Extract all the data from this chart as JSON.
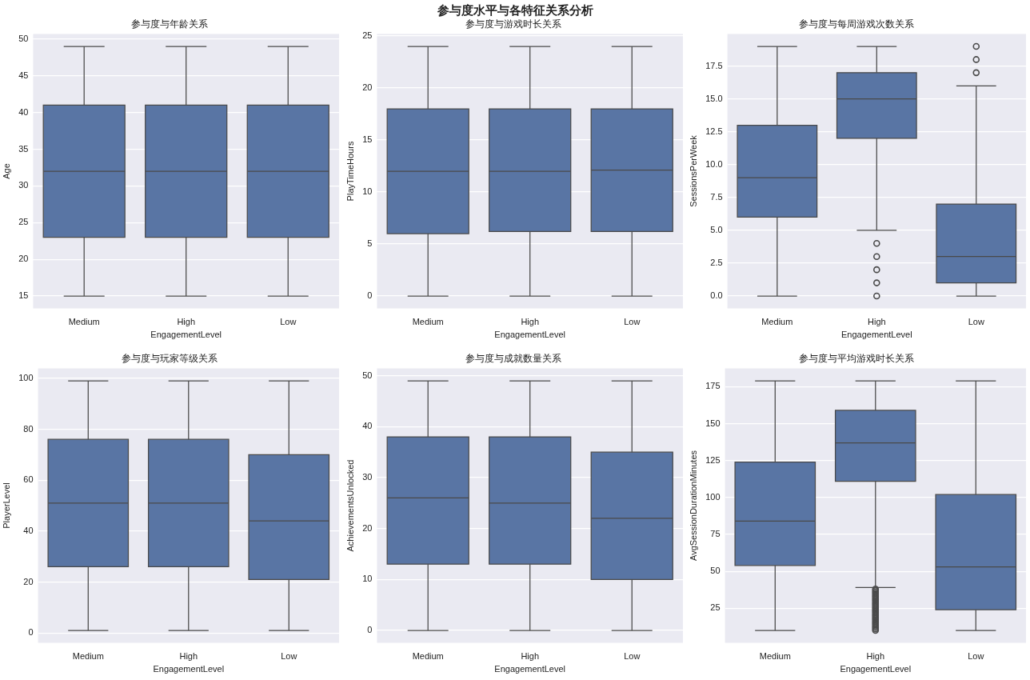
{
  "chart_data": [
    {
      "type": "other",
      "title": "参与度水平与各特征关系分析"
    },
    {
      "type": "box",
      "title": "参与度与年龄关系",
      "xlabel": "EngagementLevel",
      "ylabel": "Age",
      "categories": [
        "Medium",
        "High",
        "Low"
      ],
      "color": "#5975a4",
      "ylim": [
        13.3,
        50.7
      ],
      "yticks": [
        15,
        20,
        25,
        30,
        35,
        40,
        45,
        50
      ],
      "grid": "y",
      "boxes": [
        {
          "low": 15,
          "q1": 23,
          "median": 32,
          "q3": 41,
          "high": 49
        },
        {
          "low": 15,
          "q1": 23,
          "median": 32,
          "q3": 41,
          "high": 49
        },
        {
          "low": 15,
          "q1": 23,
          "median": 32,
          "q3": 41,
          "high": 49
        }
      ]
    },
    {
      "type": "box",
      "title": "参与度与游戏时长关系",
      "xlabel": "EngagementLevel",
      "ylabel": "PlayTimeHours",
      "categories": [
        "Medium",
        "High",
        "Low"
      ],
      "color": "#5975a4",
      "ylim": [
        -1.2,
        25.2
      ],
      "yticks": [
        0,
        5,
        10,
        15,
        20,
        25
      ],
      "grid": "y",
      "boxes": [
        {
          "low": 0,
          "q1": 6,
          "median": 12,
          "q3": 18,
          "high": 24
        },
        {
          "low": 0,
          "q1": 6.2,
          "median": 12,
          "q3": 18,
          "high": 24
        },
        {
          "low": 0,
          "q1": 6.2,
          "median": 12.1,
          "q3": 18,
          "high": 24
        }
      ]
    },
    {
      "type": "box",
      "title": "参与度与每周游戏次数关系",
      "xlabel": "EngagementLevel",
      "ylabel": "SessionsPerWeek",
      "categories": [
        "Medium",
        "High",
        "Low"
      ],
      "color": "#5975a4",
      "ylim": [
        -0.95,
        19.95
      ],
      "yticks": [
        {
          "value": 0,
          "label": "0.0"
        },
        {
          "value": 2.5,
          "label": "2.5"
        },
        {
          "value": 5,
          "label": "5.0"
        },
        {
          "value": 7.5,
          "label": "7.5"
        },
        {
          "value": 10,
          "label": "10.0"
        },
        {
          "value": 12.5,
          "label": "12.5"
        },
        {
          "value": 15,
          "label": "15.0"
        },
        {
          "value": 17.5,
          "label": "17.5"
        }
      ],
      "grid": "y",
      "boxes": [
        {
          "low": 0,
          "q1": 6,
          "median": 9,
          "q3": 13,
          "high": 19
        },
        {
          "low": 5,
          "q1": 12,
          "median": 15,
          "q3": 17,
          "high": 19,
          "outliers": [
            0,
            1,
            2,
            3,
            4
          ]
        },
        {
          "low": 0,
          "q1": 1,
          "median": 3,
          "q3": 7,
          "high": 16,
          "outliers": [
            17,
            18,
            19
          ]
        }
      ]
    },
    {
      "type": "box",
      "title": "参与度与玩家等级关系",
      "xlabel": "EngagementLevel",
      "ylabel": "PlayerLevel",
      "categories": [
        "Medium",
        "High",
        "Low"
      ],
      "color": "#5975a4",
      "ylim": [
        -3.9,
        103.9
      ],
      "yticks": [
        0,
        20,
        40,
        60,
        80,
        100
      ],
      "grid": "y",
      "boxes": [
        {
          "low": 1,
          "q1": 26,
          "median": 51,
          "q3": 76,
          "high": 99
        },
        {
          "low": 1,
          "q1": 26,
          "median": 51,
          "q3": 76,
          "high": 99
        },
        {
          "low": 1,
          "q1": 21,
          "median": 44,
          "q3": 70,
          "high": 99
        }
      ]
    },
    {
      "type": "box",
      "title": "参与度与成就数量关系",
      "xlabel": "EngagementLevel",
      "ylabel": "AchievementsUnlocked",
      "categories": [
        "Medium",
        "High",
        "Low"
      ],
      "color": "#5975a4",
      "ylim": [
        -2.45,
        51.45
      ],
      "yticks": [
        0,
        10,
        20,
        30,
        40,
        50
      ],
      "grid": "y",
      "boxes": [
        {
          "low": 0,
          "q1": 13,
          "median": 26,
          "q3": 38,
          "high": 49
        },
        {
          "low": 0,
          "q1": 13,
          "median": 25,
          "q3": 38,
          "high": 49
        },
        {
          "low": 0,
          "q1": 10,
          "median": 22,
          "q3": 35,
          "high": 49
        }
      ]
    },
    {
      "type": "box",
      "title": "参与度与平均游戏时长关系",
      "xlabel": "EngagementLevel",
      "ylabel": "AvgSessionDurationMinutes",
      "categories": [
        "Medium",
        "High",
        "Low"
      ],
      "color": "#5975a4",
      "ylim": [
        1.55,
        187.45
      ],
      "yticks": [
        25,
        50,
        75,
        100,
        125,
        150,
        175
      ],
      "grid": "y",
      "boxes": [
        {
          "low": 10,
          "q1": 54,
          "median": 84,
          "q3": 124,
          "high": 179
        },
        {
          "low": 39,
          "q1": 111,
          "median": 137,
          "q3": 159,
          "high": 179,
          "outliers": [
            10,
            11,
            12,
            13,
            14,
            15,
            16,
            17,
            18,
            19,
            20,
            21,
            22,
            23,
            24,
            25,
            26,
            27,
            28,
            29,
            30,
            31,
            32,
            33,
            34,
            35,
            36,
            37,
            38
          ]
        },
        {
          "low": 10,
          "q1": 24,
          "median": 53,
          "q3": 102,
          "high": 179
        }
      ]
    }
  ]
}
